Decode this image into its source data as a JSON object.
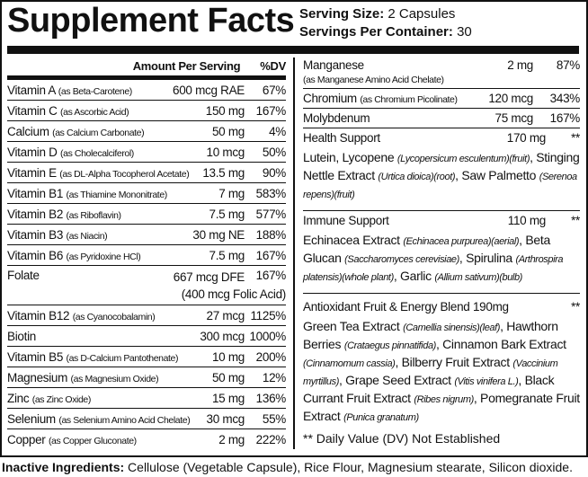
{
  "title": "Supplement Facts",
  "serving": {
    "size_label": "Serving Size:",
    "size_value": "2 Capsules",
    "per_container_label": "Servings Per Container:",
    "per_container_value": "30"
  },
  "header": {
    "amount": "Amount Per Serving",
    "dv": "%DV"
  },
  "left_rows": [
    {
      "name": "Vitamin A",
      "source": "(as Beta-Carotene)",
      "amount": "600 mcg RAE",
      "dv": "67%"
    },
    {
      "name": "Vitamin C",
      "source": "(as Ascorbic Acid)",
      "amount": "150 mg",
      "dv": "167%"
    },
    {
      "name": "Calcium",
      "source": "(as Calcium Carbonate)",
      "amount": "50 mg",
      "dv": "4%"
    },
    {
      "name": "Vitamin D",
      "source": "(as Cholecalciferol)",
      "amount": "10 mcg",
      "dv": "50%"
    },
    {
      "name": "Vitamin E",
      "source": "(as DL-Alpha Tocopherol Acetate)",
      "amount": "13.5 mg",
      "dv": "90%"
    },
    {
      "name": "Vitamin B1",
      "source": "(as Thiamine Mononitrate)",
      "amount": "7 mg",
      "dv": "583%"
    },
    {
      "name": "Vitamin B2",
      "source": "(as Riboflavin)",
      "amount": "7.5 mg",
      "dv": "577%"
    },
    {
      "name": "Vitamin B3",
      "source": "(as Niacin)",
      "amount": "30 mg NE",
      "dv": "188%"
    },
    {
      "name": "Vitamin B6",
      "source": "(as Pyridoxine HCl)",
      "amount": "7.5 mg",
      "dv": "167%"
    },
    {
      "name": "Folate",
      "source": "",
      "amount": "667 mcg DFE",
      "amount2": "(400 mcg Folic Acid)",
      "dv": "167%"
    },
    {
      "name": "Vitamin B12",
      "source": "(as Cyanocobalamin)",
      "amount": "27 mcg",
      "dv": "1125%"
    },
    {
      "name": "Biotin",
      "source": "",
      "amount": "300 mcg",
      "dv": "1000%"
    },
    {
      "name": "Vitamin B5",
      "source": "(as D-Calcium Pantothenate)",
      "amount": "10 mg",
      "dv": "200%"
    },
    {
      "name": "Magnesium",
      "source": "(as Magnesium Oxide)",
      "amount": "50 mg",
      "dv": "12%"
    },
    {
      "name": "Zinc",
      "source": "(as Zinc Oxide)",
      "amount": "15 mg",
      "dv": "136%"
    },
    {
      "name": "Selenium",
      "source": "(as Selenium Amino Acid Chelate)",
      "amount": "30 mcg",
      "dv": "55%"
    },
    {
      "name": "Copper",
      "source": "(as Copper Gluconate)",
      "amount": "2 mg",
      "dv": "222%"
    }
  ],
  "right_rows": [
    {
      "name": "Manganese",
      "source": "(as Manganese Amino Acid Chelate)",
      "amount": "2 mg",
      "dv": "87%"
    },
    {
      "name": "Chromium",
      "source": "(as Chromium Picolinate)",
      "amount": "120 mcg",
      "dv": "343%"
    },
    {
      "name": "Molybdenum",
      "source": "",
      "amount": "75 mcg",
      "dv": "167%"
    }
  ],
  "blends": [
    {
      "name": "Health Support",
      "amount": "170 mg",
      "dv": "**",
      "parts": [
        {
          "t": "Lutein, Lycopene ",
          "i": "(Lycopersicum esculentum)(fruit)"
        },
        {
          "t": ", Stinging Nettle Extract ",
          "i": "(Urtica dioica)(root)"
        },
        {
          "t": ", Saw Palmetto ",
          "i": "(Serenoa repens)(fruit)"
        }
      ]
    },
    {
      "name": "Immune Support",
      "amount": "110 mg",
      "dv": "**",
      "parts": [
        {
          "t": "Echinacea Extract ",
          "i": "(Echinacea purpurea)(aerial)"
        },
        {
          "t": ", Beta Glucan ",
          "i": "(Saccharomyces cerevisiae)"
        },
        {
          "t": ", Spirulina ",
          "i": "(Arthrospira platensis)(whole plant)"
        },
        {
          "t": ", Garlic ",
          "i": "(Allium sativum)(bulb)"
        }
      ]
    },
    {
      "name": "Antioxidant Fruit & Energy Blend 190mg",
      "amount": "",
      "dv": "**",
      "parts": [
        {
          "t": "Green Tea Extract ",
          "i": "(Camellia sinensis)(leaf)"
        },
        {
          "t": ", Hawthorn Berries ",
          "i": "(Crataegus pinnatifida)"
        },
        {
          "t": ", Cinnamon Bark Extract ",
          "i": "(Cinnamomum cassia)"
        },
        {
          "t": ", Bilberry Fruit Extract ",
          "i": "(Vaccinium myrtillus)"
        },
        {
          "t": ", Grape Seed Extract ",
          "i": "(Vitis vinifera L.)"
        },
        {
          "t": ", Black Currant Fruit Extract ",
          "i": "(Ribes nigrum)"
        },
        {
          "t": ", Pomegranate Fruit Extract ",
          "i": "(Punica granatum)"
        }
      ]
    }
  ],
  "footnote": "** Daily Value (DV) Not Established",
  "inactive": {
    "label": "Inactive Ingredients:",
    "value": "Cellulose (Vegetable Capsule), Rice Flour, Magnesium stearate, Silicon dioxide."
  }
}
